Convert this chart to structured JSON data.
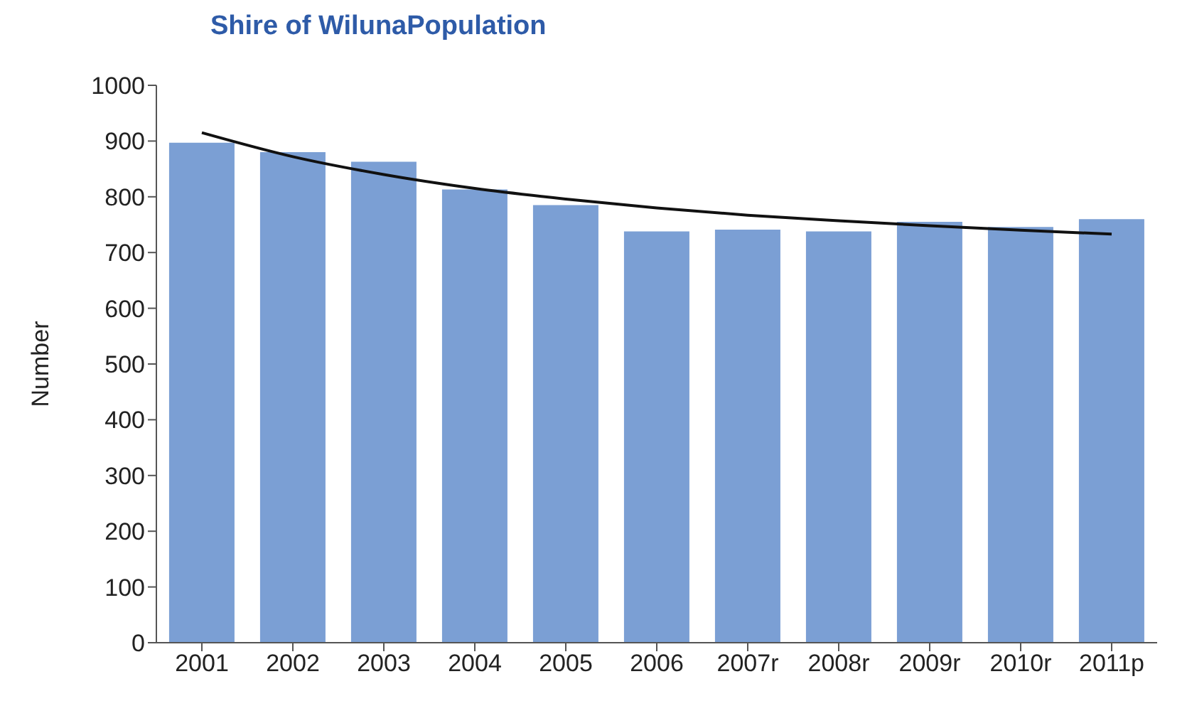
{
  "chart_data": {
    "type": "bar",
    "title": "Shire of WilunaPopulation",
    "ylabel": "Number",
    "categories": [
      "2001",
      "2002",
      "2003",
      "2004",
      "2005",
      "2006",
      "2007r",
      "2008r",
      "2009r",
      "2010r",
      "2011p"
    ],
    "series": [
      {
        "color": "#7b9fd4",
        "values": [
          897,
          880,
          863,
          813,
          785,
          738,
          741,
          738,
          755,
          746,
          760
        ]
      },
      {
        "type": "line",
        "color": "#111111",
        "values": [
          915,
          872,
          840,
          815,
          796,
          780,
          767,
          757,
          748,
          740,
          733
        ]
      }
    ],
    "ylim": [
      0,
      1000
    ],
    "yticks": [
      0,
      100,
      200,
      300,
      400,
      500,
      600,
      700,
      800,
      900,
      1000
    ],
    "grid": false,
    "marker": "none",
    "line_style": "solid"
  }
}
